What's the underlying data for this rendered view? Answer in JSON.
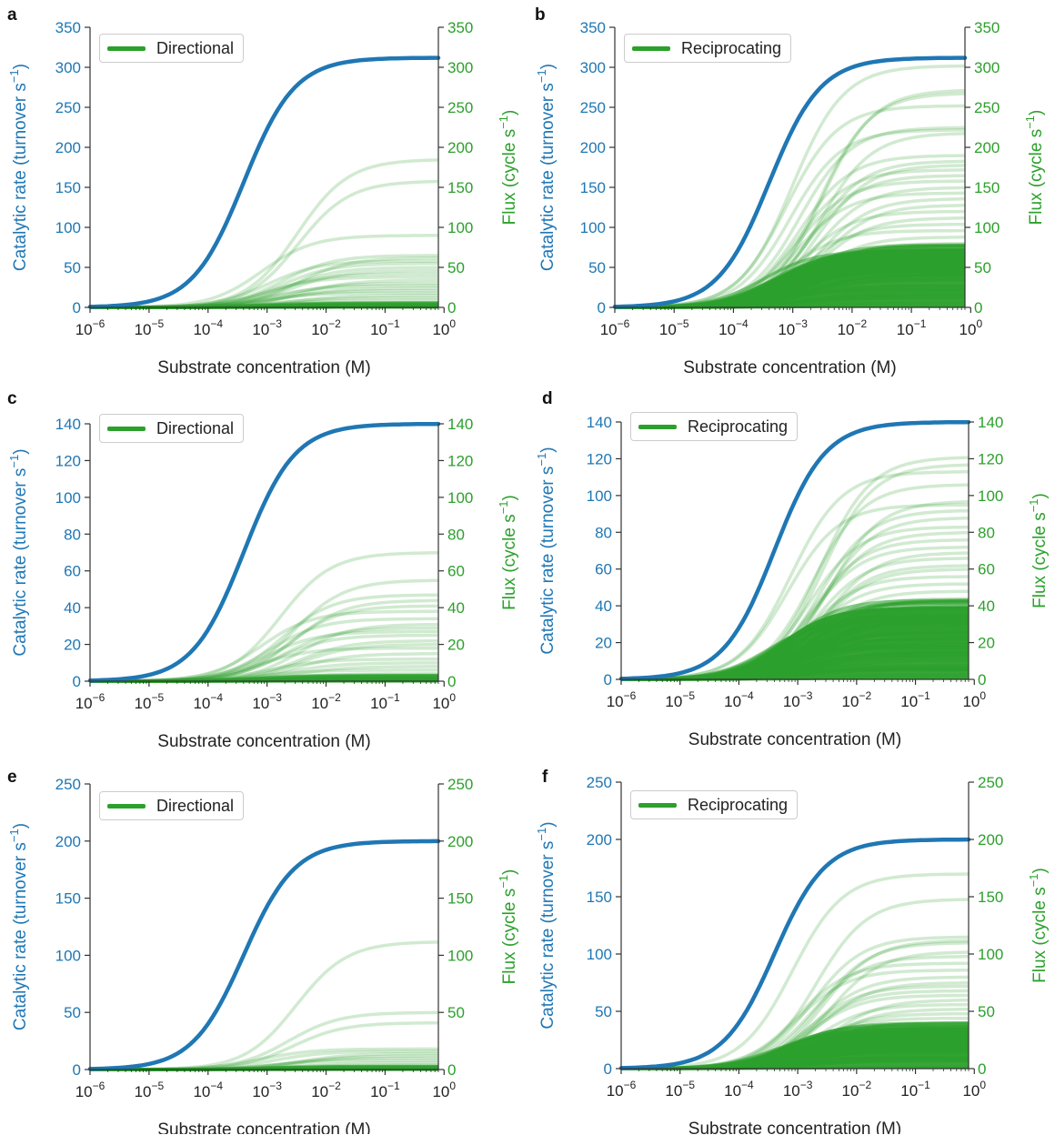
{
  "figure": {
    "colors": {
      "rate": "#1f77b4",
      "flux": "#2ca02c",
      "axis": "#333333"
    },
    "x_axis_title": "Substrate concentration (M)",
    "left_axis_title_main": "Catalytic rate (turnover s",
    "left_axis_title_tail": ")",
    "right_axis_title_main": "Flux (cycle s",
    "right_axis_title_tail": ")",
    "superscript_minus_one": "−1",
    "x_tick_base": "10",
    "x_tick_exponents": [
      "−6",
      "−5",
      "−4",
      "−3",
      "−2",
      "−1",
      "0"
    ]
  },
  "chart_data": [
    {
      "panel": "a",
      "type": "line",
      "legend": "Directional",
      "xscale": "log",
      "xlim": [
        1e-06,
        0.8
      ],
      "ylim": [
        0,
        350
      ],
      "yticks": [
        0,
        50,
        100,
        150,
        200,
        250,
        300,
        350
      ],
      "rate_curve": {
        "vmax": 312,
        "km": 0.0004
      },
      "flux_plateaus": [
        185,
        158,
        90,
        65,
        62,
        58,
        55,
        50,
        46,
        42,
        38,
        34,
        30,
        27,
        24,
        21,
        18,
        15,
        12,
        9,
        6
      ],
      "flux_density": "sparse"
    },
    {
      "panel": "b",
      "type": "line",
      "legend": "Reciprocating",
      "xscale": "log",
      "xlim": [
        1e-06,
        0.8
      ],
      "ylim": [
        0,
        350
      ],
      "yticks": [
        0,
        50,
        100,
        150,
        200,
        250,
        300,
        350
      ],
      "rate_curve": {
        "vmax": 312,
        "km": 0.0004
      },
      "flux_plateaus": [
        302,
        272,
        268,
        252,
        225,
        222,
        218,
        190,
        183,
        178,
        172,
        165,
        158,
        150,
        143,
        136,
        128,
        120,
        112,
        104,
        96,
        88,
        80
      ],
      "flux_density": "dense"
    },
    {
      "panel": "c",
      "type": "line",
      "legend": "Directional",
      "xscale": "log",
      "xlim": [
        1e-06,
        0.8
      ],
      "ylim": [
        0,
        140
      ],
      "yticks": [
        0,
        20,
        40,
        60,
        80,
        100,
        120,
        140
      ],
      "rate_curve": {
        "vmax": 140,
        "km": 0.0004
      },
      "flux_plateaus": [
        70,
        55,
        47,
        44,
        41,
        38,
        34,
        31,
        29,
        27,
        25,
        22,
        20,
        18,
        15,
        12,
        10,
        8,
        6,
        4
      ],
      "flux_density": "sparse"
    },
    {
      "panel": "d",
      "type": "line",
      "legend": "Reciprocating",
      "xscale": "log",
      "xlim": [
        1e-06,
        0.8
      ],
      "ylim": [
        0,
        140
      ],
      "yticks": [
        0,
        20,
        40,
        60,
        80,
        100,
        120,
        140
      ],
      "rate_curve": {
        "vmax": 140,
        "km": 0.0004
      },
      "flux_plateaus": [
        121,
        117,
        113,
        106,
        97,
        95,
        92,
        88,
        83,
        80,
        76,
        72,
        69,
        66,
        62,
        60,
        56,
        52,
        48,
        44
      ],
      "flux_density": "dense"
    },
    {
      "panel": "e",
      "type": "line",
      "legend": "Directional",
      "xscale": "log",
      "xlim": [
        1e-06,
        0.8
      ],
      "ylim": [
        0,
        250
      ],
      "yticks": [
        0,
        50,
        100,
        150,
        200,
        250
      ],
      "rate_curve": {
        "vmax": 200,
        "km": 0.0004
      },
      "flux_plateaus": [
        112,
        50,
        41,
        18,
        16,
        14,
        12,
        10,
        8,
        6,
        4,
        3
      ],
      "flux_density": "sparse"
    },
    {
      "panel": "f",
      "type": "line",
      "legend": "Reciprocating",
      "xscale": "log",
      "xlim": [
        1e-06,
        0.8
      ],
      "ylim": [
        0,
        250
      ],
      "yticks": [
        0,
        50,
        100,
        150,
        200,
        250
      ],
      "rate_curve": {
        "vmax": 200,
        "km": 0.0004
      },
      "flux_plateaus": [
        170,
        148,
        115,
        112,
        110,
        102,
        98,
        92,
        86,
        80,
        75,
        72,
        68,
        64,
        60,
        56,
        52,
        48,
        44,
        40
      ],
      "flux_density": "dense"
    }
  ]
}
